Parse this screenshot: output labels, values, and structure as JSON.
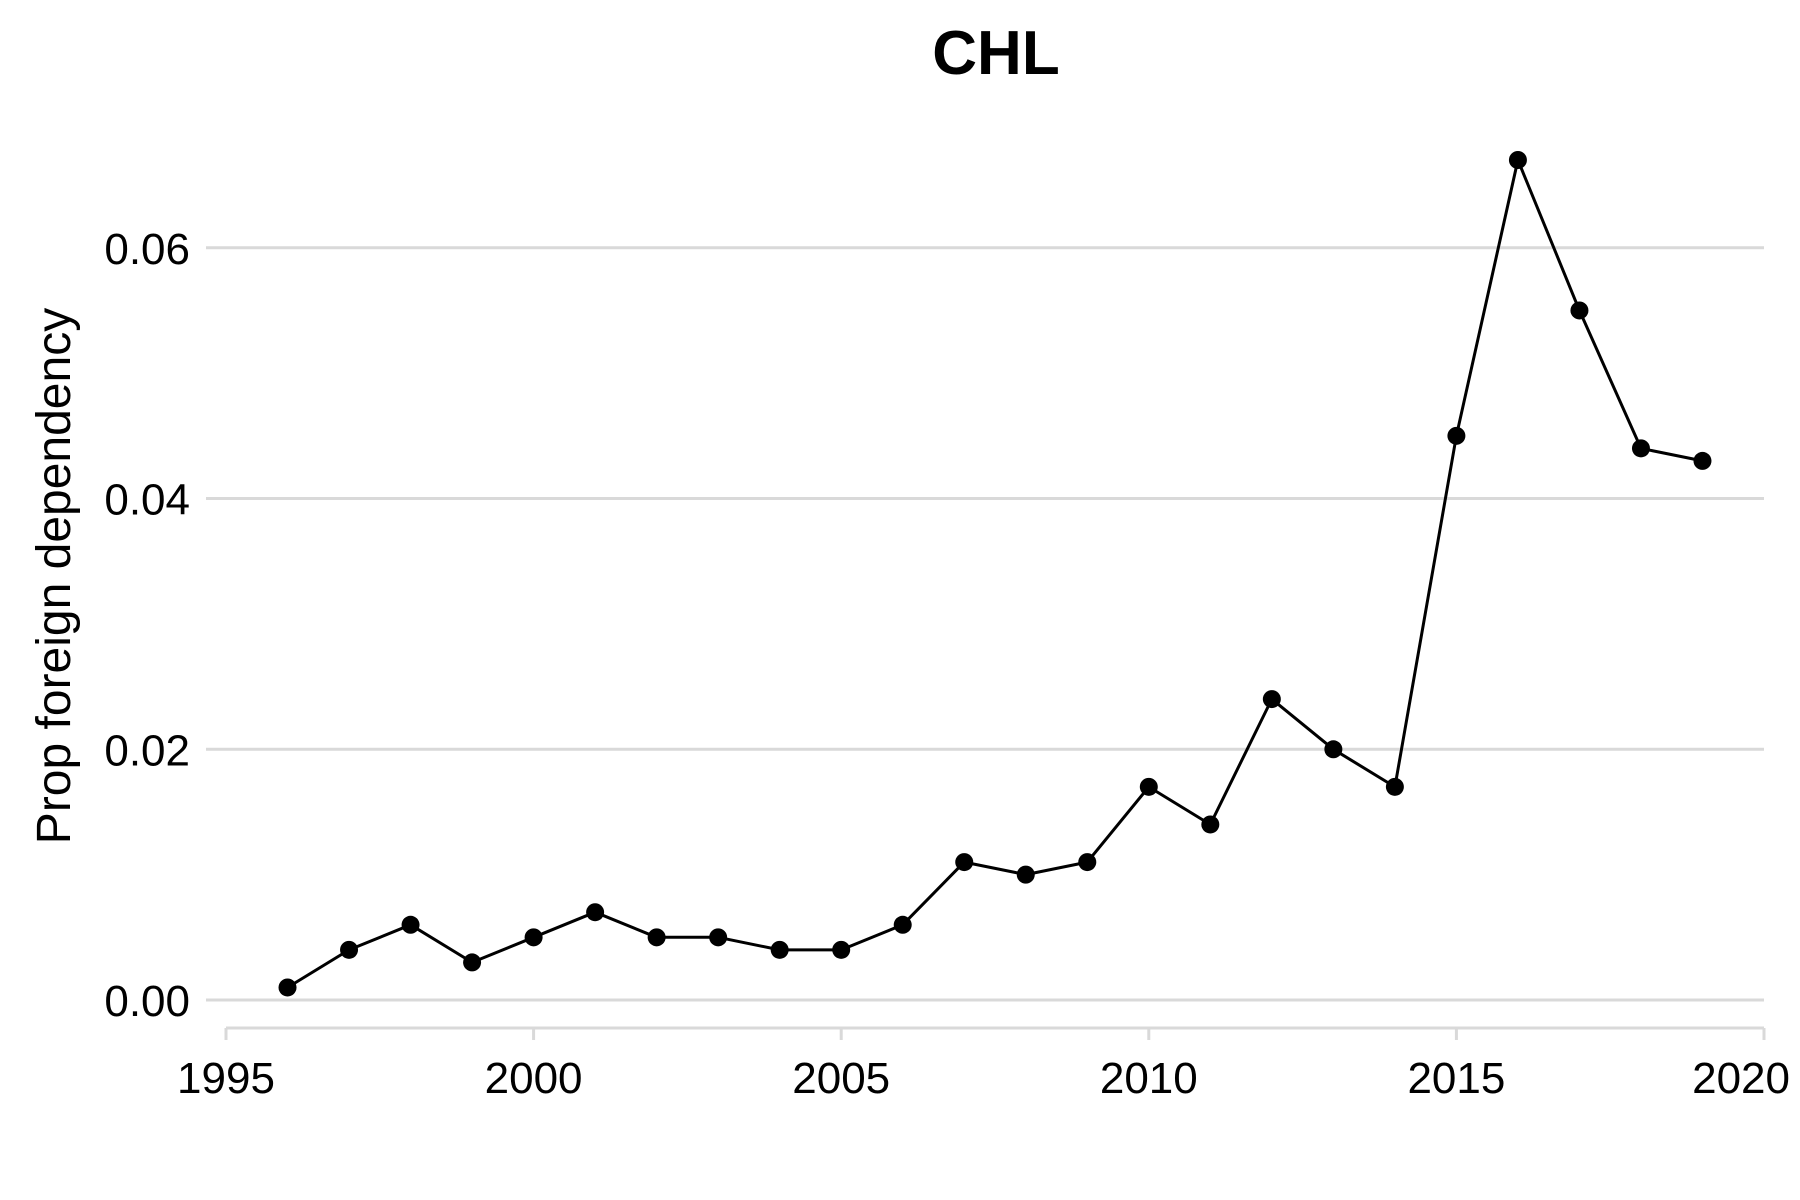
{
  "chart_data": {
    "type": "line",
    "title": "CHL",
    "xlabel": "",
    "ylabel": "Prop foreign dependency",
    "xlim": [
      1995,
      2020
    ],
    "ylim": [
      0,
      0.067
    ],
    "x_ticks": [
      1995,
      2000,
      2005,
      2010,
      2015,
      2020
    ],
    "x_tick_labels": [
      "1995",
      "2000",
      "2005",
      "2010",
      "2015",
      "2020"
    ],
    "y_ticks": [
      0,
      0.02,
      0.04,
      0.06
    ],
    "y_tick_labels": [
      "0.00",
      "0.02",
      "0.04",
      "0.06"
    ],
    "grid": "horizontal",
    "legend": "none",
    "series": [
      {
        "color": "#000000",
        "x": [
          1996,
          1997,
          1998,
          1999,
          2000,
          2001,
          2002,
          2003,
          2004,
          2005,
          2006,
          2007,
          2008,
          2009,
          2010,
          2011,
          2012,
          2013,
          2014,
          2015,
          2016,
          2017,
          2018,
          2019
        ],
        "y": [
          0.001,
          0.004,
          0.006,
          0.003,
          0.005,
          0.007,
          0.005,
          0.005,
          0.004,
          0.004,
          0.006,
          0.011,
          0.01,
          0.011,
          0.017,
          0.014,
          0.024,
          0.02,
          0.017,
          0.045,
          0.067,
          0.055,
          0.044,
          0.043
        ]
      }
    ]
  }
}
